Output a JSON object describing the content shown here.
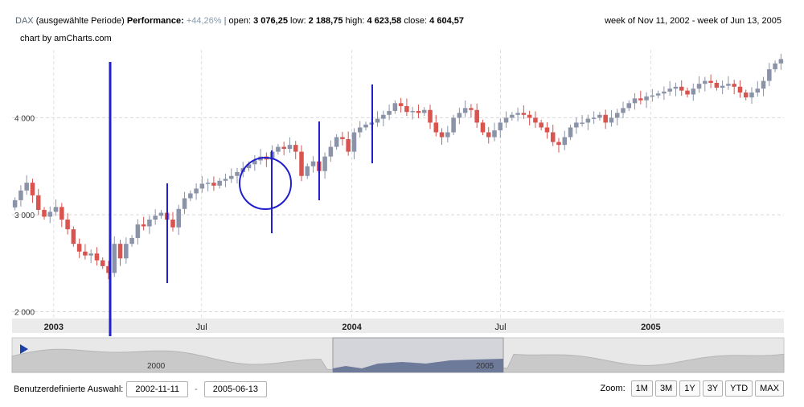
{
  "header": {
    "series_name": "DAX",
    "period_label": "(ausgewählte Periode)",
    "performance_label": "Performance:",
    "performance_value": "+44,26%",
    "separator": "|",
    "open_label": "open:",
    "open_value": "3 076,25",
    "low_label": "low:",
    "low_value": "2 188,75",
    "high_label": "high:",
    "high_value": "4 623,58",
    "close_label": "close:",
    "close_value": "4 604,57",
    "range_text": "week of Nov 11, 2002 - week of Jun 13, 2005"
  },
  "credit": "chart by amCharts.com",
  "chart_data": {
    "type": "candlestick",
    "y_ticks": [
      "2 000",
      "3 000",
      "4 000"
    ],
    "y_tick_values": [
      2000,
      3000,
      4000
    ],
    "ylim": [
      1930,
      4700
    ],
    "x_start": "2002-11-11",
    "x_end": "2005-06-13",
    "x_tick_labels": [
      {
        "label": "2003",
        "bold": true
      },
      {
        "label": "Jul",
        "bold": false
      },
      {
        "label": "2004",
        "bold": true
      },
      {
        "label": "Jul",
        "bold": false
      },
      {
        "label": "2005",
        "bold": true
      }
    ],
    "up_color": "#8b93a8",
    "down_color": "#d9534f",
    "closes": [
      3150,
      3250,
      3330,
      3200,
      3050,
      2980,
      3030,
      3080,
      2950,
      2850,
      2700,
      2620,
      2580,
      2600,
      2530,
      2470,
      2400,
      2700,
      2550,
      2700,
      2760,
      2900,
      2880,
      2950,
      2990,
      3020,
      2950,
      2870,
      3060,
      3170,
      3220,
      3270,
      3320,
      3330,
      3300,
      3350,
      3370,
      3400,
      3440,
      3480,
      3520,
      3560,
      3600,
      3570,
      3650,
      3700,
      3680,
      3720,
      3650,
      3400,
      3500,
      3550,
      3450,
      3600,
      3700,
      3800,
      3780,
      3650,
      3850,
      3900,
      3930,
      3950,
      3990,
      4030,
      4070,
      4150,
      4120,
      4060,
      4070,
      4050,
      4080,
      3950,
      3850,
      3800,
      3850,
      4000,
      4050,
      4100,
      4080,
      3950,
      3850,
      3800,
      3870,
      3950,
      4000,
      4030,
      4050,
      4030,
      4000,
      3950,
      3900,
      3850,
      3750,
      3720,
      3800,
      3900,
      3950,
      3950,
      3990,
      4000,
      4030,
      3950,
      4000,
      4050,
      4100,
      4150,
      4200,
      4180,
      4220,
      4230,
      4250,
      4270,
      4300,
      4320,
      4280,
      4240,
      4300,
      4350,
      4380,
      4360,
      4310,
      4330,
      4350,
      4320,
      4260,
      4210,
      4260,
      4300,
      4380,
      4500,
      4560,
      4605
    ],
    "navigator_labels": [
      "2000",
      "2005"
    ],
    "selection_from": "2002-11-11",
    "selection_to": "2005-06-13",
    "annotation_color": "#1f1fcc"
  },
  "footer": {
    "custom_label": "Benutzerdefinierte Auswahl:",
    "from_date": "2002-11-11",
    "dash": "-",
    "to_date": "2005-06-13",
    "zoom_label": "Zoom:",
    "zoom_buttons": [
      "1M",
      "3M",
      "1Y",
      "3Y",
      "YTD",
      "MAX"
    ]
  }
}
